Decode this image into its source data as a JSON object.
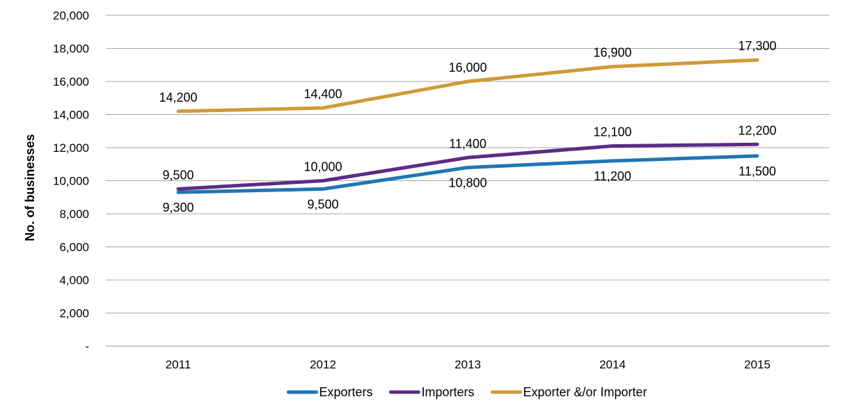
{
  "chart_data": {
    "type": "line",
    "categories": [
      "2011",
      "2012",
      "2013",
      "2014",
      "2015"
    ],
    "ylabel": "No. of businesses",
    "xlabel": "",
    "ylim": [
      0,
      20000
    ],
    "ytick_values": [
      0,
      2000,
      4000,
      6000,
      8000,
      10000,
      12000,
      14000,
      16000,
      18000,
      20000
    ],
    "ytick_labels": [
      "-",
      "2,000",
      "4,000",
      "6,000",
      "8,000",
      "10,000",
      "12,000",
      "14,000",
      "16,000",
      "18,000",
      "20,000"
    ],
    "grid": true,
    "legend_position": "bottom",
    "series": [
      {
        "name": "Exporters",
        "color": "#1f77b4",
        "values": [
          9300,
          9500,
          10800,
          11200,
          11500
        ],
        "labels": [
          "9,300",
          "9,500",
          "10,800",
          "11,200",
          "11,500"
        ],
        "label_position": "below"
      },
      {
        "name": "Importers",
        "color": "#5b2c86",
        "values": [
          9500,
          10000,
          11400,
          12100,
          12200
        ],
        "labels": [
          "9,500",
          "10,000",
          "11,400",
          "12,100",
          "12,200"
        ],
        "label_position": "above"
      },
      {
        "name": "Exporter &/or Importer",
        "color": "#d09a38",
        "values": [
          14200,
          14400,
          16000,
          16900,
          17300
        ],
        "labels": [
          "14,200",
          "14,400",
          "16,000",
          "16,900",
          "17,300"
        ],
        "label_position": "above"
      }
    ]
  }
}
